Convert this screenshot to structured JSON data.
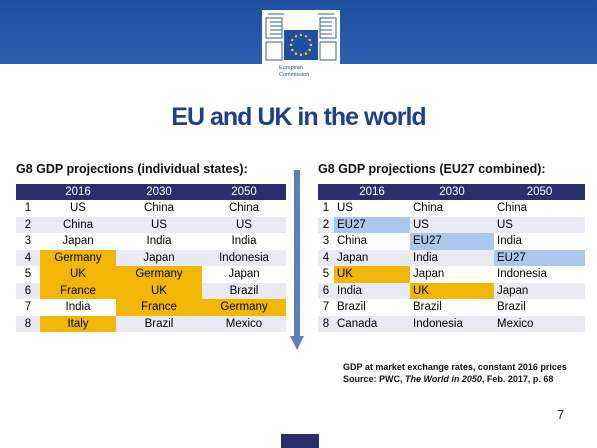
{
  "header": {
    "logo_line1": "European",
    "logo_line2": "Commission"
  },
  "title": "EU and UK in the world",
  "left": {
    "subtitle": "G8 GDP projections (individual states):",
    "columns": [
      "2016",
      "2030",
      "2050"
    ],
    "rows": [
      {
        "rank": "1",
        "cells": [
          "US",
          "China",
          "China"
        ]
      },
      {
        "rank": "2",
        "cells": [
          "China",
          "US",
          "US"
        ]
      },
      {
        "rank": "3",
        "cells": [
          "Japan",
          "India",
          "India"
        ]
      },
      {
        "rank": "4",
        "cells": [
          "Germany",
          "Japan",
          "Indonesia"
        ]
      },
      {
        "rank": "5",
        "cells": [
          "UK",
          "Germany",
          "Japan"
        ]
      },
      {
        "rank": "6",
        "cells": [
          "France",
          "UK",
          "Brazil"
        ]
      },
      {
        "rank": "7",
        "cells": [
          "India",
          "France",
          "Germany"
        ]
      },
      {
        "rank": "8",
        "cells": [
          "Italy",
          "Brazil",
          "Mexico"
        ]
      }
    ]
  },
  "right": {
    "subtitle": "G8 GDP projections (EU27 combined):",
    "columns": [
      "2016",
      "2030",
      "2050"
    ],
    "rows": [
      {
        "rank": "1",
        "cells": [
          "US",
          "China",
          "China"
        ]
      },
      {
        "rank": "2",
        "cells": [
          "EU27",
          "US",
          "US"
        ]
      },
      {
        "rank": "3",
        "cells": [
          "China",
          "EU27",
          "India"
        ]
      },
      {
        "rank": "4",
        "cells": [
          "Japan",
          "India",
          "EU27"
        ]
      },
      {
        "rank": "5",
        "cells": [
          "UK",
          "Japan",
          "Indonesia"
        ]
      },
      {
        "rank": "6",
        "cells": [
          "India",
          "UK",
          "Japan"
        ]
      },
      {
        "rank": "7",
        "cells": [
          "Brazil",
          "Brazil",
          "Brazil"
        ]
      },
      {
        "rank": "8",
        "cells": [
          "Canada",
          "Indonesia",
          "Mexico"
        ]
      }
    ]
  },
  "source": {
    "line1": "GDP at market exchange rates, constant 2016 prices",
    "line2_prefix": "Source: PWC, ",
    "line2_italic": "The World in 2050",
    "line2_suffix": ", Feb. 2017, p. 68"
  },
  "page_number": "7",
  "colors": {
    "header_blue": "#1f4fa0",
    "table_header": "#2a2e70",
    "highlight_orange": "#f2b705",
    "highlight_blue": "#a9c8ec",
    "title": "#1f3f8c"
  }
}
